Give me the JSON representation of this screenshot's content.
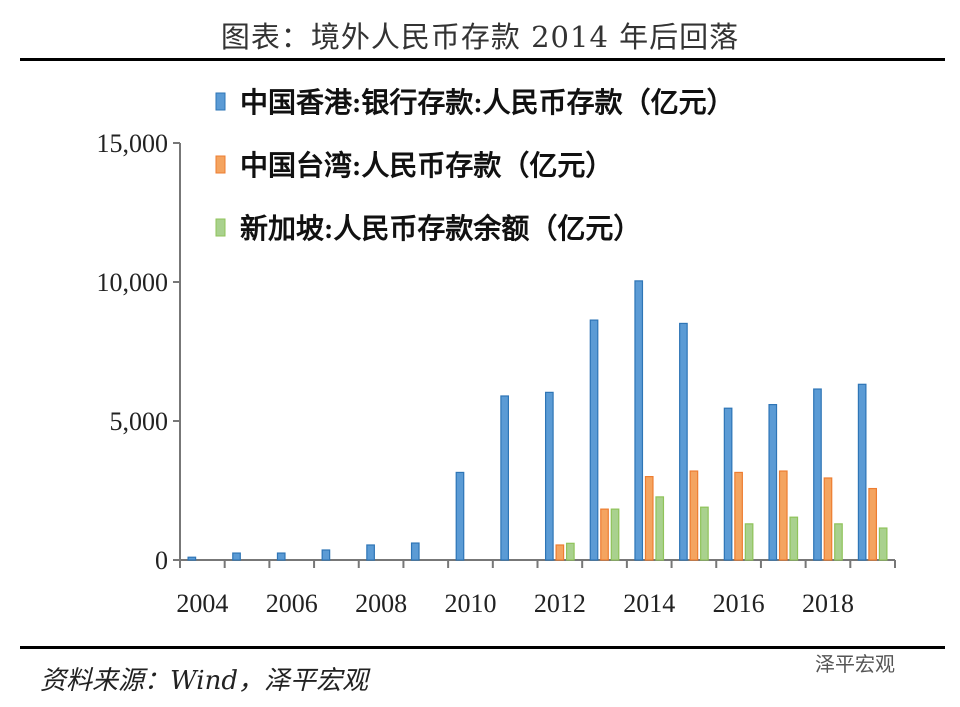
{
  "title": "图表：境外人民币存款 2014 年后回落",
  "source": "资料来源：Wind，泽平宏观",
  "watermark": "泽平宏观",
  "chart_data": {
    "type": "bar",
    "title": "图表：境外人民币存款 2014 年后回落",
    "categories": [
      "2004",
      "2005",
      "2006",
      "2007",
      "2008",
      "2009",
      "2010",
      "2011",
      "2012",
      "2013",
      "2014",
      "2015",
      "2016",
      "2017",
      "2018",
      "2019"
    ],
    "xtick_labels": [
      "2004",
      "2006",
      "2008",
      "2010",
      "2012",
      "2014",
      "2016",
      "2018"
    ],
    "ylim": [
      0,
      15000
    ],
    "yticks": [
      0,
      5000,
      10000,
      15000
    ],
    "ytick_labels": [
      "0",
      "5,000",
      "10,000",
      "15,000"
    ],
    "legend_position": "top-right",
    "series": [
      {
        "name": "中国香港:银行存款:人民币存款（亿元）",
        "color": "#5b9bd5",
        "values": [
          100,
          250,
          250,
          360,
          540,
          610,
          3150,
          5900,
          6030,
          8630,
          10040,
          8510,
          5460,
          5590,
          6150,
          6320
        ]
      },
      {
        "name": "中国台湾:人民币存款（亿元）",
        "color": "#f4a460",
        "values": [
          0,
          0,
          0,
          0,
          0,
          0,
          0,
          0,
          540,
          1830,
          3000,
          3200,
          3150,
          3200,
          2950,
          2570
        ]
      },
      {
        "name": "新加坡:人民币存款余额（亿元）",
        "color": "#a9d18e",
        "values": [
          0,
          0,
          0,
          0,
          0,
          0,
          0,
          0,
          600,
          1830,
          2270,
          1900,
          1300,
          1540,
          1300,
          1150
        ]
      }
    ]
  }
}
